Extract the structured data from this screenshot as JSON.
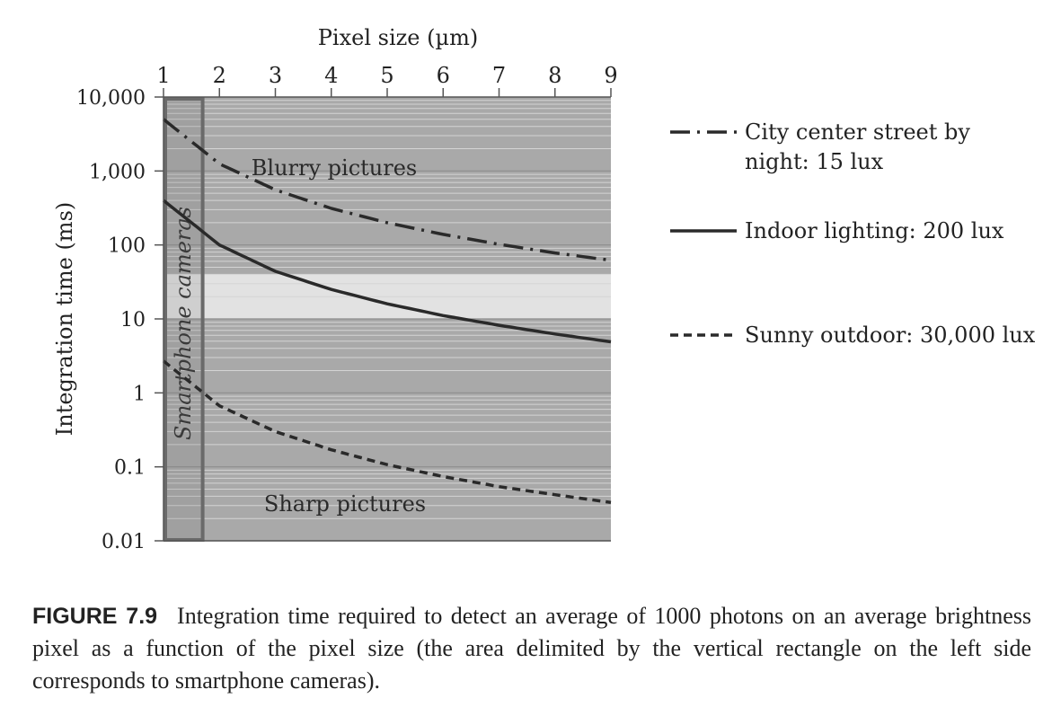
{
  "chart_data": {
    "type": "line",
    "title": "",
    "xlabel": "Pixel size (µm)",
    "ylabel": "Integration time (ms)",
    "xlim": [
      1,
      9
    ],
    "ylim": [
      0.01,
      10000
    ],
    "y_scale": "log",
    "x_ticks": [
      "1",
      "2",
      "3",
      "4",
      "5",
      "6",
      "7",
      "8",
      "9"
    ],
    "y_ticks": [
      {
        "value": 10000,
        "label": "10,000"
      },
      {
        "value": 1000,
        "label": "1,000"
      },
      {
        "value": 100,
        "label": "100"
      },
      {
        "value": 10,
        "label": "10"
      },
      {
        "value": 1,
        "label": "1"
      },
      {
        "value": 0.1,
        "label": "0.1"
      },
      {
        "value": 0.01,
        "label": "0.01"
      }
    ],
    "x": [
      1,
      2,
      3,
      4,
      5,
      6,
      7,
      8,
      9
    ],
    "series": [
      {
        "name": "City center street by night: 15 lux",
        "style": "dash-dot",
        "values": [
          5000,
          1250,
          556,
          312,
          200,
          139,
          102,
          78,
          62
        ]
      },
      {
        "name": "Indoor lighting: 200 lux",
        "style": "solid",
        "values": [
          400,
          100,
          44,
          25,
          16,
          11.1,
          8.2,
          6.25,
          4.9
        ]
      },
      {
        "name": "Sunny outdoor: 30,000 lux",
        "style": "dashed",
        "values": [
          2.7,
          0.67,
          0.3,
          0.17,
          0.107,
          0.074,
          0.054,
          0.042,
          0.033
        ]
      }
    ],
    "regions": [
      {
        "label": "Blurry pictures",
        "y_from": 40,
        "y_to": 10000
      },
      {
        "label": "",
        "y_from": 10,
        "y_to": 40
      },
      {
        "label": "Sharp pictures",
        "y_from": 0.01,
        "y_to": 10
      }
    ],
    "highlight": {
      "label": "Smartphone cameras",
      "x_from": 1,
      "x_to": 1.7
    },
    "grid": true,
    "legend_position": "right",
    "colors": {
      "band_dark": "#a9a9a9",
      "band_light": "#e2e2e2",
      "grid": "#d4d4d4",
      "line": "#2a2a2a",
      "highlight_stroke": "#6a6a6a"
    }
  },
  "caption": {
    "label": "FIGURE 7.9",
    "text": "Integration time required to detect an average of 1000 photons on an average brightness pixel as a function of the pixel size (the area delimited by the vertical rectangle on the left side corresponds to smartphone cameras)."
  }
}
